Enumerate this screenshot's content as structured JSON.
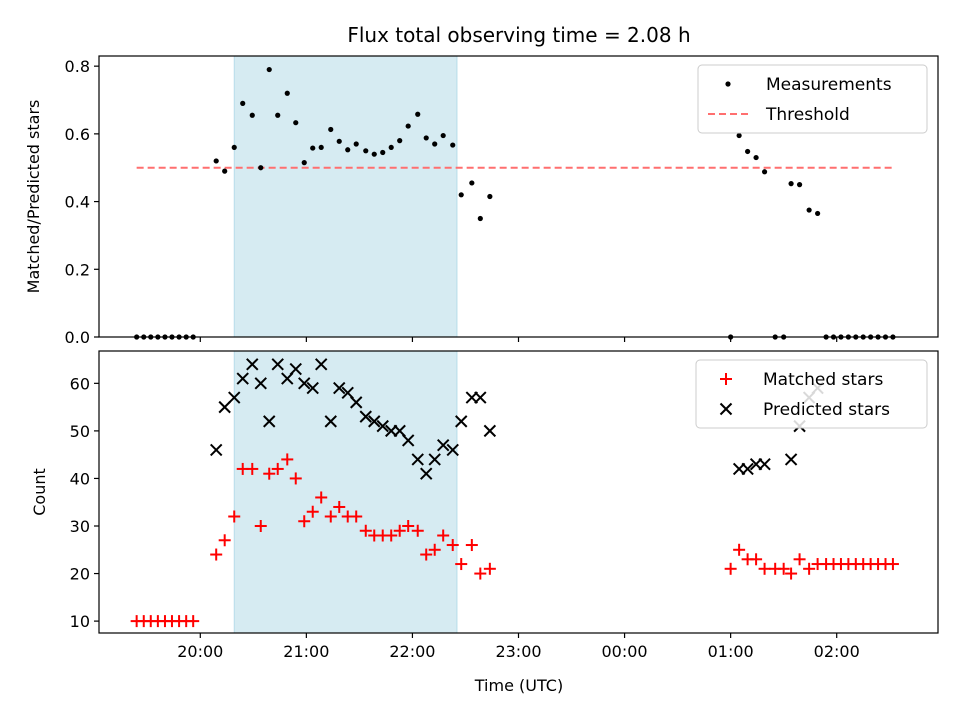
{
  "chart_data": {
    "title": "Flux total observing time = 2.08 h",
    "xlabel": "Time (UTC)",
    "xlim": [
      -0.955,
      6.955
    ],
    "x_ticks": [
      {
        "value": 0,
        "label": "20:00"
      },
      {
        "value": 1,
        "label": "21:00"
      },
      {
        "value": 2,
        "label": "22:00"
      },
      {
        "value": 3,
        "label": "23:00"
      },
      {
        "value": 4,
        "label": "00:00"
      },
      {
        "value": 5,
        "label": "01:00"
      },
      {
        "value": 6,
        "label": "02:00"
      }
    ],
    "shaded_interval": {
      "start": 0.32,
      "end": 2.42,
      "color": "#add8e6"
    },
    "panels": [
      {
        "type": "scatter",
        "ylabel": "Matched/Predicted stars",
        "ylim": [
          0.0,
          0.83
        ],
        "y_ticks": [
          {
            "value": 0.0,
            "label": "0.0"
          },
          {
            "value": 0.2,
            "label": "0.2"
          },
          {
            "value": 0.4,
            "label": "0.4"
          },
          {
            "value": 0.6,
            "label": "0.6"
          },
          {
            "value": 0.8,
            "label": "0.8"
          }
        ],
        "legend_position": "top-right",
        "threshold": {
          "name": "Threshold",
          "value": 0.5,
          "x_range": [
            -0.6,
            6.55
          ],
          "color": "#ff6f6f",
          "style": "dashed"
        },
        "series": [
          {
            "name": "Measurements",
            "marker": "dot",
            "color": "#000000",
            "points": [
              [
                -0.6,
                0
              ],
              [
                -0.533,
                0
              ],
              [
                -0.467,
                0
              ],
              [
                -0.4,
                0
              ],
              [
                -0.333,
                0
              ],
              [
                -0.267,
                0
              ],
              [
                -0.2,
                0
              ],
              [
                -0.133,
                0
              ],
              [
                -0.067,
                0
              ],
              [
                0.15,
                0.52
              ],
              [
                0.23,
                0.49
              ],
              [
                0.32,
                0.56
              ],
              [
                0.4,
                0.69
              ],
              [
                0.49,
                0.655
              ],
              [
                0.57,
                0.5
              ],
              [
                0.65,
                0.79
              ],
              [
                0.73,
                0.655
              ],
              [
                0.82,
                0.72
              ],
              [
                0.9,
                0.633
              ],
              [
                0.98,
                0.515
              ],
              [
                1.06,
                0.558
              ],
              [
                1.14,
                0.56
              ],
              [
                1.23,
                0.613
              ],
              [
                1.31,
                0.578
              ],
              [
                1.39,
                0.553
              ],
              [
                1.47,
                0.57
              ],
              [
                1.56,
                0.55
              ],
              [
                1.64,
                0.54
              ],
              [
                1.72,
                0.545
              ],
              [
                1.8,
                0.56
              ],
              [
                1.88,
                0.58
              ],
              [
                1.96,
                0.623
              ],
              [
                2.05,
                0.658
              ],
              [
                2.13,
                0.588
              ],
              [
                2.21,
                0.57
              ],
              [
                2.29,
                0.595
              ],
              [
                2.38,
                0.567
              ],
              [
                2.46,
                0.42
              ],
              [
                2.56,
                0.455
              ],
              [
                2.64,
                0.35
              ],
              [
                2.73,
                0.415
              ],
              [
                5.0,
                0
              ],
              [
                5.08,
                0.595
              ],
              [
                5.16,
                0.548
              ],
              [
                5.24,
                0.53
              ],
              [
                5.32,
                0.488
              ],
              [
                5.42,
                0
              ],
              [
                5.5,
                0
              ],
              [
                5.57,
                0.453
              ],
              [
                5.65,
                0.45
              ],
              [
                5.74,
                0.375
              ],
              [
                5.82,
                0.365
              ],
              [
                5.9,
                0
              ],
              [
                5.97,
                0
              ],
              [
                6.04,
                0
              ],
              [
                6.11,
                0
              ],
              [
                6.18,
                0
              ],
              [
                6.25,
                0
              ],
              [
                6.32,
                0
              ],
              [
                6.39,
                0
              ],
              [
                6.46,
                0
              ],
              [
                6.53,
                0
              ]
            ]
          }
        ]
      },
      {
        "type": "scatter",
        "ylabel": "Count",
        "ylim": [
          7.5,
          66.8
        ],
        "y_ticks": [
          {
            "value": 10,
            "label": "10"
          },
          {
            "value": 20,
            "label": "20"
          },
          {
            "value": 30,
            "label": "30"
          },
          {
            "value": 40,
            "label": "40"
          },
          {
            "value": 50,
            "label": "50"
          },
          {
            "value": 60,
            "label": "60"
          }
        ],
        "legend_position": "top-right",
        "series": [
          {
            "name": "Matched stars",
            "marker": "plus",
            "color": "#ff0000",
            "points": [
              [
                -0.6,
                10
              ],
              [
                -0.533,
                10
              ],
              [
                -0.467,
                10
              ],
              [
                -0.4,
                10
              ],
              [
                -0.333,
                10
              ],
              [
                -0.267,
                10
              ],
              [
                -0.2,
                10
              ],
              [
                -0.133,
                10
              ],
              [
                -0.067,
                10
              ],
              [
                0.15,
                24
              ],
              [
                0.23,
                27
              ],
              [
                0.32,
                32
              ],
              [
                0.4,
                42
              ],
              [
                0.49,
                42
              ],
              [
                0.57,
                30
              ],
              [
                0.65,
                41
              ],
              [
                0.73,
                42
              ],
              [
                0.82,
                44
              ],
              [
                0.9,
                40
              ],
              [
                0.98,
                31
              ],
              [
                1.06,
                33
              ],
              [
                1.14,
                36
              ],
              [
                1.23,
                32
              ],
              [
                1.31,
                34
              ],
              [
                1.39,
                32
              ],
              [
                1.47,
                32
              ],
              [
                1.56,
                29
              ],
              [
                1.64,
                28
              ],
              [
                1.72,
                28
              ],
              [
                1.8,
                28
              ],
              [
                1.88,
                29
              ],
              [
                1.96,
                30
              ],
              [
                2.05,
                29
              ],
              [
                2.13,
                24
              ],
              [
                2.21,
                25
              ],
              [
                2.29,
                28
              ],
              [
                2.38,
                26
              ],
              [
                2.46,
                22
              ],
              [
                2.56,
                26
              ],
              [
                2.64,
                20
              ],
              [
                2.73,
                21
              ],
              [
                5.0,
                21
              ],
              [
                5.08,
                25
              ],
              [
                5.16,
                23
              ],
              [
                5.24,
                23
              ],
              [
                5.32,
                21
              ],
              [
                5.42,
                21
              ],
              [
                5.5,
                21
              ],
              [
                5.57,
                20
              ],
              [
                5.65,
                23
              ],
              [
                5.74,
                21
              ],
              [
                5.82,
                22
              ],
              [
                5.9,
                22
              ],
              [
                5.97,
                22
              ],
              [
                6.04,
                22
              ],
              [
                6.11,
                22
              ],
              [
                6.18,
                22
              ],
              [
                6.25,
                22
              ],
              [
                6.32,
                22
              ],
              [
                6.39,
                22
              ],
              [
                6.46,
                22
              ],
              [
                6.53,
                22
              ]
            ]
          },
          {
            "name": "Predicted stars",
            "marker": "x",
            "color": "#000000",
            "points": [
              [
                0.15,
                46
              ],
              [
                0.23,
                55
              ],
              [
                0.32,
                57
              ],
              [
                0.4,
                61
              ],
              [
                0.49,
                64
              ],
              [
                0.57,
                60
              ],
              [
                0.65,
                52
              ],
              [
                0.73,
                64
              ],
              [
                0.82,
                61
              ],
              [
                0.9,
                63
              ],
              [
                0.98,
                60
              ],
              [
                1.06,
                59
              ],
              [
                1.14,
                64
              ],
              [
                1.23,
                52
              ],
              [
                1.31,
                59
              ],
              [
                1.39,
                58
              ],
              [
                1.47,
                56
              ],
              [
                1.56,
                53
              ],
              [
                1.64,
                52
              ],
              [
                1.72,
                51
              ],
              [
                1.8,
                50
              ],
              [
                1.88,
                50
              ],
              [
                1.96,
                48
              ],
              [
                2.05,
                44
              ],
              [
                2.13,
                41
              ],
              [
                2.21,
                44
              ],
              [
                2.29,
                47
              ],
              [
                2.38,
                46
              ],
              [
                2.46,
                52
              ],
              [
                2.56,
                57
              ],
              [
                2.64,
                57
              ],
              [
                2.73,
                50
              ],
              [
                5.08,
                42
              ],
              [
                5.16,
                42
              ],
              [
                5.24,
                43
              ],
              [
                5.32,
                43
              ],
              [
                5.57,
                44
              ],
              [
                5.65,
                51
              ],
              [
                5.74,
                57
              ],
              [
                5.82,
                59
              ]
            ]
          }
        ]
      }
    ]
  }
}
